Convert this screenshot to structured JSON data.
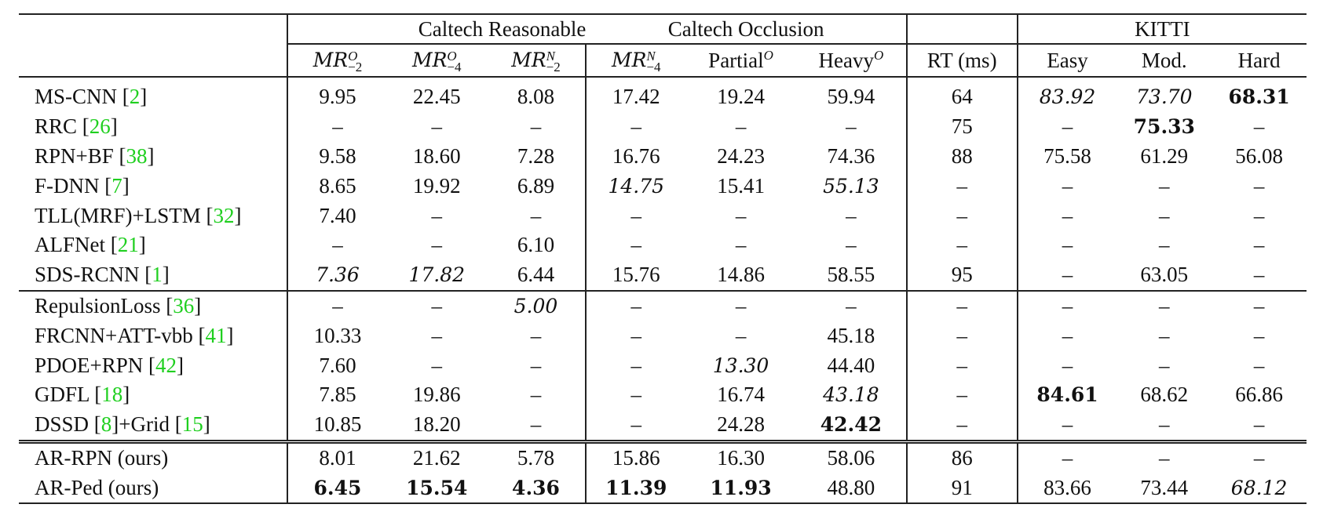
{
  "header": {
    "groups": [
      "Caltech Reasonable",
      "Caltech Occlusion",
      "KITTI"
    ],
    "columns": [
      {
        "base": "MR",
        "sup": "O",
        "sub": "−2"
      },
      {
        "base": "MR",
        "sup": "O",
        "sub": "−4"
      },
      {
        "base": "MR",
        "sup": "N",
        "sub": "−2"
      },
      {
        "base": "MR",
        "sup": "N",
        "sub": "−4"
      },
      {
        "text": "Partial",
        "sup": "O"
      },
      {
        "text": "Heavy",
        "sup": "O"
      },
      {
        "text": "RT (ms)"
      },
      {
        "text": "Easy"
      },
      {
        "text": "Mod."
      },
      {
        "text": "Hard"
      }
    ]
  },
  "sections": [
    {
      "rows": [
        {
          "method": "MS-CNN",
          "cites": [
            "2"
          ],
          "values": [
            "9.95",
            "22.45",
            "8.08",
            "17.42",
            "19.24",
            "59.94",
            "64",
            "83.92",
            "73.70",
            "68.31"
          ],
          "italic": [
            7,
            8
          ],
          "bold": [
            9
          ]
        },
        {
          "method": "RRC",
          "cites": [
            "26"
          ],
          "values": [
            "–",
            "–",
            "–",
            "–",
            "–",
            "–",
            "75",
            "–",
            "75.33",
            "–"
          ],
          "italic": [],
          "bold": [
            8
          ]
        },
        {
          "method": "RPN+BF",
          "cites": [
            "38"
          ],
          "values": [
            "9.58",
            "18.60",
            "7.28",
            "16.76",
            "24.23",
            "74.36",
            "88",
            "75.58",
            "61.29",
            "56.08"
          ],
          "italic": [],
          "bold": []
        },
        {
          "method": "F-DNN",
          "cites": [
            "7"
          ],
          "values": [
            "8.65",
            "19.92",
            "6.89",
            "14.75",
            "15.41",
            "55.13",
            "–",
            "–",
            "–",
            "–"
          ],
          "italic": [
            3,
            5
          ],
          "bold": []
        },
        {
          "method": "TLL(MRF)+LSTM",
          "cites": [
            "32"
          ],
          "values": [
            "7.40",
            "–",
            "–",
            "–",
            "–",
            "–",
            "–",
            "–",
            "–",
            "–"
          ],
          "italic": [],
          "bold": []
        },
        {
          "method": "ALFNet",
          "cites": [
            "21"
          ],
          "values": [
            "–",
            "–",
            "6.10",
            "–",
            "–",
            "–",
            "–",
            "–",
            "–",
            "–"
          ],
          "italic": [],
          "bold": []
        },
        {
          "method": "SDS-RCNN",
          "cites": [
            "1"
          ],
          "values": [
            "7.36",
            "17.82",
            "6.44",
            "15.76",
            "14.86",
            "58.55",
            "95",
            "–",
            "63.05",
            "–"
          ],
          "italic": [
            0,
            1
          ],
          "bold": []
        }
      ]
    },
    {
      "rows": [
        {
          "method": "RepulsionLoss",
          "cites": [
            "36"
          ],
          "values": [
            "–",
            "–",
            "5.00",
            "–",
            "–",
            "–",
            "–",
            "–",
            "–",
            "–"
          ],
          "italic": [
            2
          ],
          "bold": []
        },
        {
          "method": "FRCNN+ATT-vbb",
          "cites": [
            "41"
          ],
          "values": [
            "10.33",
            "–",
            "–",
            "–",
            "–",
            "45.18",
            "–",
            "–",
            "–",
            "–"
          ],
          "italic": [],
          "bold": []
        },
        {
          "method": "PDOE+RPN",
          "cites": [
            "42"
          ],
          "values": [
            "7.60",
            "–",
            "–",
            "–",
            "13.30",
            "44.40",
            "–",
            "–",
            "–",
            "–"
          ],
          "italic": [
            4
          ],
          "bold": []
        },
        {
          "method": "GDFL",
          "cites": [
            "18"
          ],
          "values": [
            "7.85",
            "19.86",
            "–",
            "–",
            "16.74",
            "43.18",
            "–",
            "84.61",
            "68.62",
            "66.86"
          ],
          "italic": [
            5
          ],
          "bold": [
            7
          ]
        },
        {
          "method": "DSSD",
          "cites": [
            "8",
            "15"
          ],
          "suffix": "+Grid",
          "values": [
            "10.85",
            "18.20",
            "–",
            "–",
            "24.28",
            "42.42",
            "–",
            "–",
            "–",
            "–"
          ],
          "italic": [],
          "bold": [
            5
          ]
        }
      ]
    },
    {
      "rows": [
        {
          "method": "AR-RPN (ours)",
          "cites": [],
          "values": [
            "8.01",
            "21.62",
            "5.78",
            "15.86",
            "16.30",
            "58.06",
            "86",
            "–",
            "–",
            "–"
          ],
          "italic": [],
          "bold": []
        },
        {
          "method": "AR-Ped (ours)",
          "cites": [],
          "values": [
            "6.45",
            "15.54",
            "4.36",
            "11.39",
            "11.93",
            "48.80",
            "91",
            "83.66",
            "73.44",
            "68.12"
          ],
          "italic": [
            9
          ],
          "bold": [
            0,
            1,
            2,
            3,
            4
          ]
        }
      ]
    }
  ],
  "colors": {
    "citation": "#1fcf1f",
    "text": "#111111",
    "rule": "#222222"
  }
}
